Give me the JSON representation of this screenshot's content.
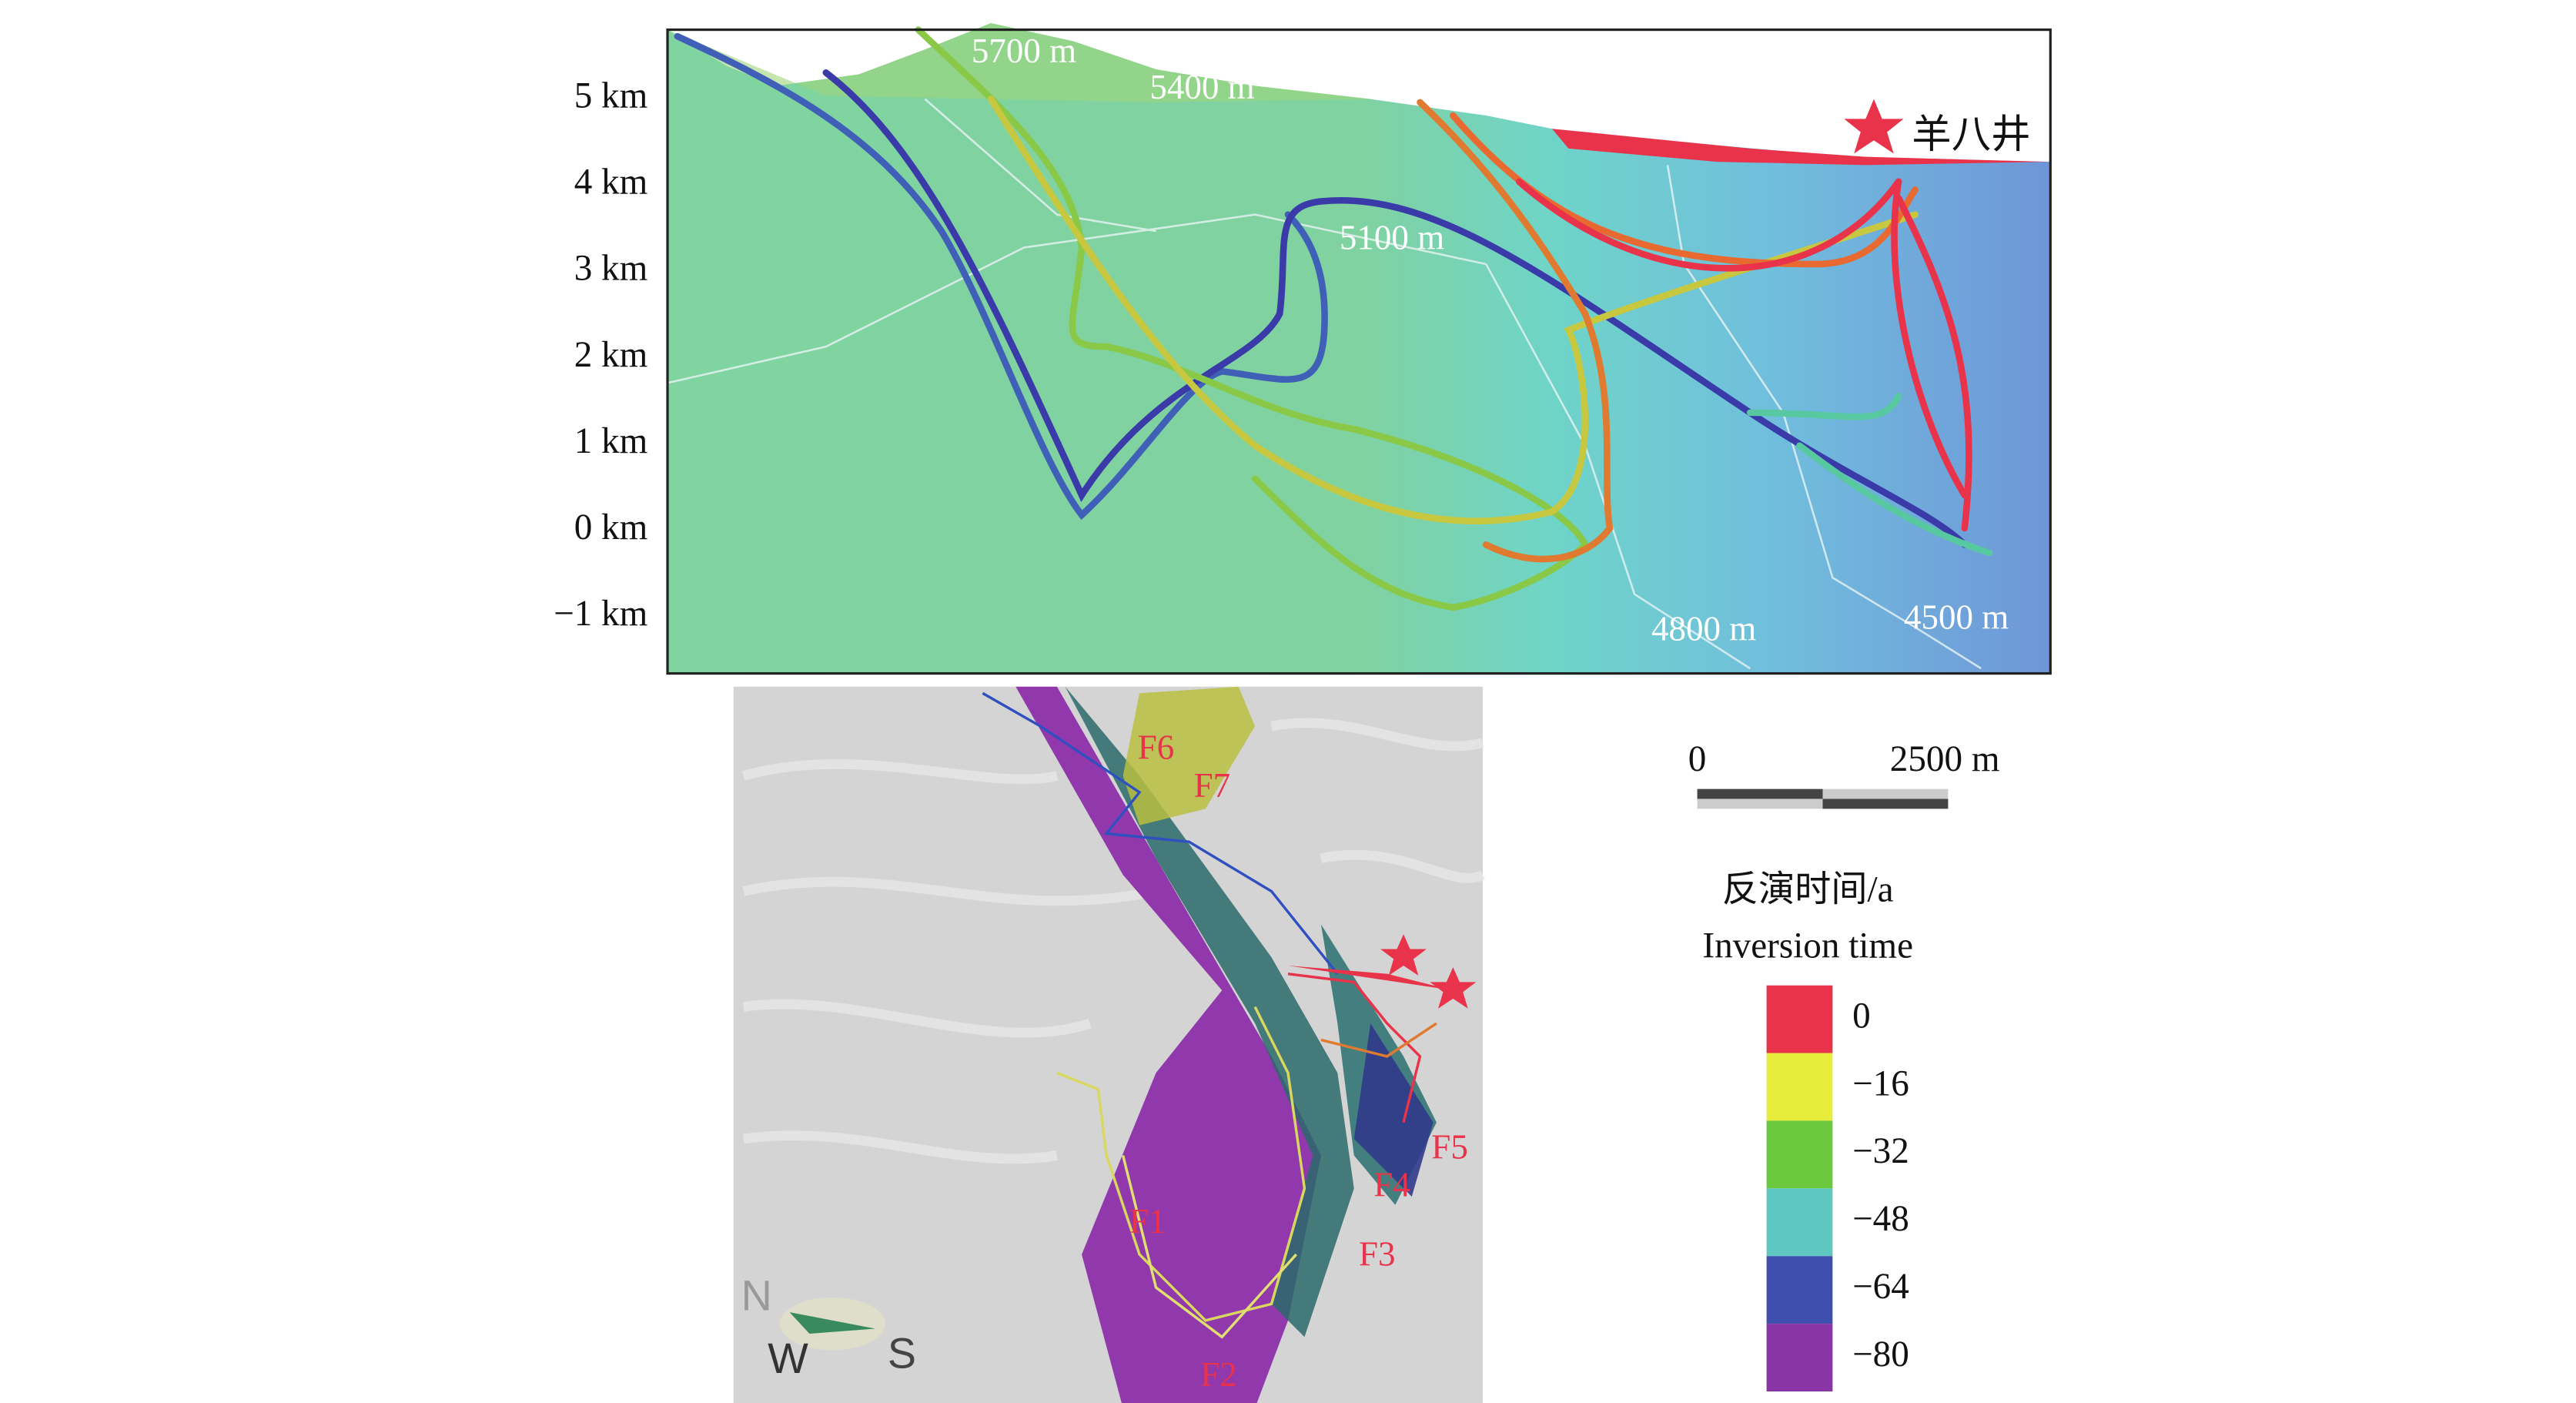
{
  "profile": {
    "y_axis_labels": [
      "5 km",
      "4 km",
      "3 km",
      "2 km",
      "1 km",
      "0 km",
      "−1 km"
    ],
    "contour_labels": [
      "5700 m",
      "5400 m",
      "5100 m",
      "4800 m",
      "4500 m"
    ],
    "site_label": "羊八井"
  },
  "map": {
    "fault_labels": [
      "F6",
      "F7",
      "F1",
      "F2",
      "F3",
      "F4",
      "F5"
    ],
    "compass": {
      "north": "N",
      "west": "W",
      "south": "S"
    }
  },
  "scale_bar": {
    "start": "0",
    "end": "2500 m"
  },
  "legend": {
    "title": "反演时间/a",
    "subtitle": "Inversion time",
    "items": [
      {
        "label": "0",
        "color": "#e8334a"
      },
      {
        "label": "−16",
        "color": "#e8ec3c"
      },
      {
        "label": "−32",
        "color": "#6cc83f"
      },
      {
        "label": "−48",
        "color": "#5ec8c0"
      },
      {
        "label": "−64",
        "color": "#3f4fae"
      },
      {
        "label": "−80",
        "color": "#8a35a6"
      }
    ]
  }
}
